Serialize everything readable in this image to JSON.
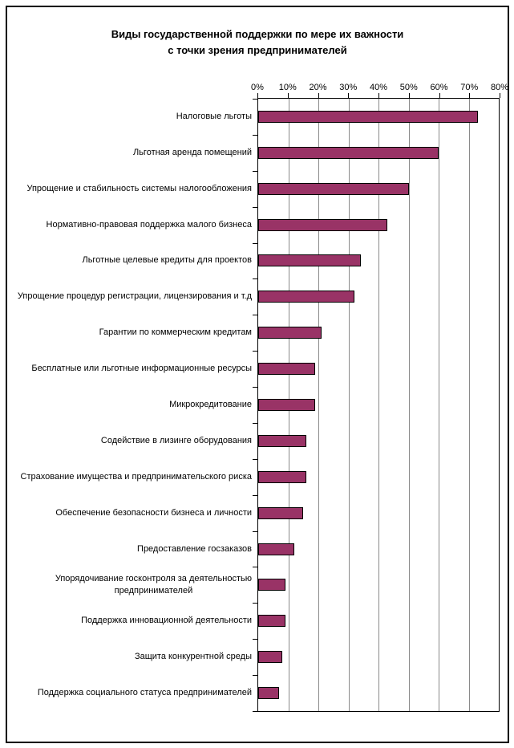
{
  "window": {
    "background": "#ffffff",
    "border_color": "#000000"
  },
  "chart_data": {
    "type": "bar",
    "orientation": "horizontal",
    "title": "Виды государственной поддержки по мере их важности с точки зрения предпринимателей",
    "title_lines": [
      "Виды государственной поддержки по мере их важности",
      "с точки зрения предпринимателей"
    ],
    "categories": [
      "Налоговые льготы",
      "Льготная аренда помещений",
      "Упрощение и стабильность системы налогообложения",
      "Нормативно-правовая поддержка малого бизнеса",
      "Льготные целевые кредиты для проектов",
      "Упрощение процедур регистрации, лицензирования и т.д",
      "Гарантии по коммерческим кредитам",
      "Бесплатные или льготные информационные ресурсы",
      "Микрокредитование",
      "Содействие в лизинге оборудования",
      "Страхование имущества и предпринимательского риска",
      "Обеспечение безопасности бизнеса и личности",
      "Предоставление госзаказов",
      "Упорядочивание госконтроля за деятельностью\nпредпринимателей",
      "Поддержка инновационной деятельности",
      "Защита конкурентной среды",
      "Поддержка социального статуса предпринимателей"
    ],
    "values": [
      73,
      60,
      50,
      43,
      34,
      32,
      21,
      19,
      19,
      16,
      16,
      15,
      12,
      9,
      9,
      8,
      7
    ],
    "unit": "%",
    "xlabel": "",
    "ylabel": "",
    "x_axis": {
      "min": 0,
      "max": 80,
      "step": 10,
      "position": "top",
      "tick_labels": [
        "0%",
        "10%",
        "20%",
        "30%",
        "40%",
        "50%",
        "60%",
        "70%",
        "80%"
      ]
    },
    "grid": "vertical",
    "legend": false,
    "colors": {
      "bar_fill": "#993366",
      "bar_border": "#000000",
      "gridline": "#8a8a8a",
      "axis": "#000000",
      "text": "#000000"
    }
  }
}
